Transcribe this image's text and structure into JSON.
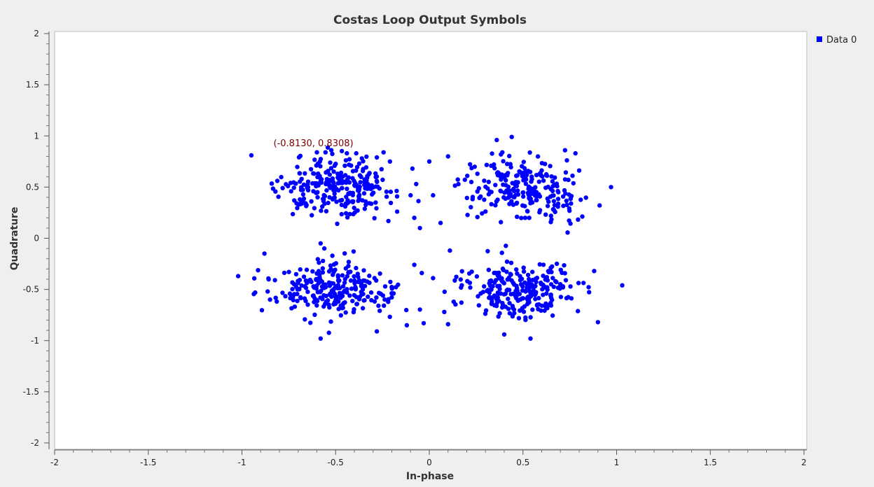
{
  "chart_data": {
    "type": "scatter",
    "title": "Costas Loop Output Symbols",
    "xlabel": "In-phase",
    "ylabel": "Quadrature",
    "xlim": [
      -2,
      2
    ],
    "ylim": [
      -2,
      2
    ],
    "xticks": [
      "-2",
      "-1.5",
      "-1",
      "-0.5",
      "0",
      "0.5",
      "1",
      "1.5",
      "2"
    ],
    "yticks": [
      "2",
      "1.5",
      "1",
      "0.5",
      "0",
      "-0.5",
      "-1",
      "-1.5",
      "-2"
    ],
    "legend_position": "top-right",
    "series": [
      {
        "name": "Data 0",
        "color": "#0000ff",
        "clusters": [
          {
            "center": [
              -0.5,
              0.5
            ],
            "spread": [
              0.16,
              0.14
            ],
            "count": 260
          },
          {
            "center": [
              0.5,
              0.5
            ],
            "spread": [
              0.16,
              0.14
            ],
            "count": 240
          },
          {
            "center": [
              -0.5,
              -0.5
            ],
            "spread": [
              0.16,
              0.14
            ],
            "count": 250
          },
          {
            "center": [
              0.5,
              -0.5
            ],
            "spread": [
              0.16,
              0.14
            ],
            "count": 250
          }
        ],
        "points": [
          [
            -0.95,
            0.81
          ],
          [
            -0.6,
            0.84
          ],
          [
            -0.44,
            0.83
          ],
          [
            -0.39,
            0.83
          ],
          [
            -0.36,
            0.78
          ],
          [
            -0.28,
            0.79
          ],
          [
            -0.21,
            0.75
          ],
          [
            -0.09,
            0.68
          ],
          [
            -0.07,
            0.53
          ],
          [
            -0.1,
            0.42
          ],
          [
            -0.08,
            0.2
          ],
          [
            -0.05,
            0.1
          ],
          [
            -1.02,
            -0.37
          ],
          [
            -0.88,
            -0.15
          ],
          [
            -0.58,
            -0.05
          ],
          [
            -0.58,
            -0.98
          ],
          [
            -0.28,
            -0.91
          ],
          [
            -0.12,
            -0.85
          ],
          [
            -0.08,
            -0.26
          ],
          [
            -0.04,
            -0.34
          ],
          [
            -0.03,
            -0.83
          ],
          [
            0.0,
            0.75
          ],
          [
            0.02,
            0.42
          ],
          [
            0.06,
            0.15
          ],
          [
            0.1,
            0.8
          ],
          [
            0.36,
            0.96
          ],
          [
            0.44,
            0.99
          ],
          [
            0.39,
            0.84
          ],
          [
            0.78,
            0.83
          ],
          [
            0.97,
            0.5
          ],
          [
            0.02,
            -0.39
          ],
          [
            0.08,
            -0.72
          ],
          [
            0.1,
            -0.84
          ],
          [
            0.13,
            -0.62
          ],
          [
            0.11,
            -0.12
          ],
          [
            0.4,
            -0.94
          ],
          [
            0.54,
            -0.98
          ],
          [
            0.9,
            -0.82
          ],
          [
            1.03,
            -0.46
          ],
          [
            0.88,
            -0.32
          ]
        ]
      }
    ],
    "annotation": {
      "label": "(-0.8130, 0.8308)",
      "point": [
        -0.813,
        0.8308
      ]
    }
  }
}
